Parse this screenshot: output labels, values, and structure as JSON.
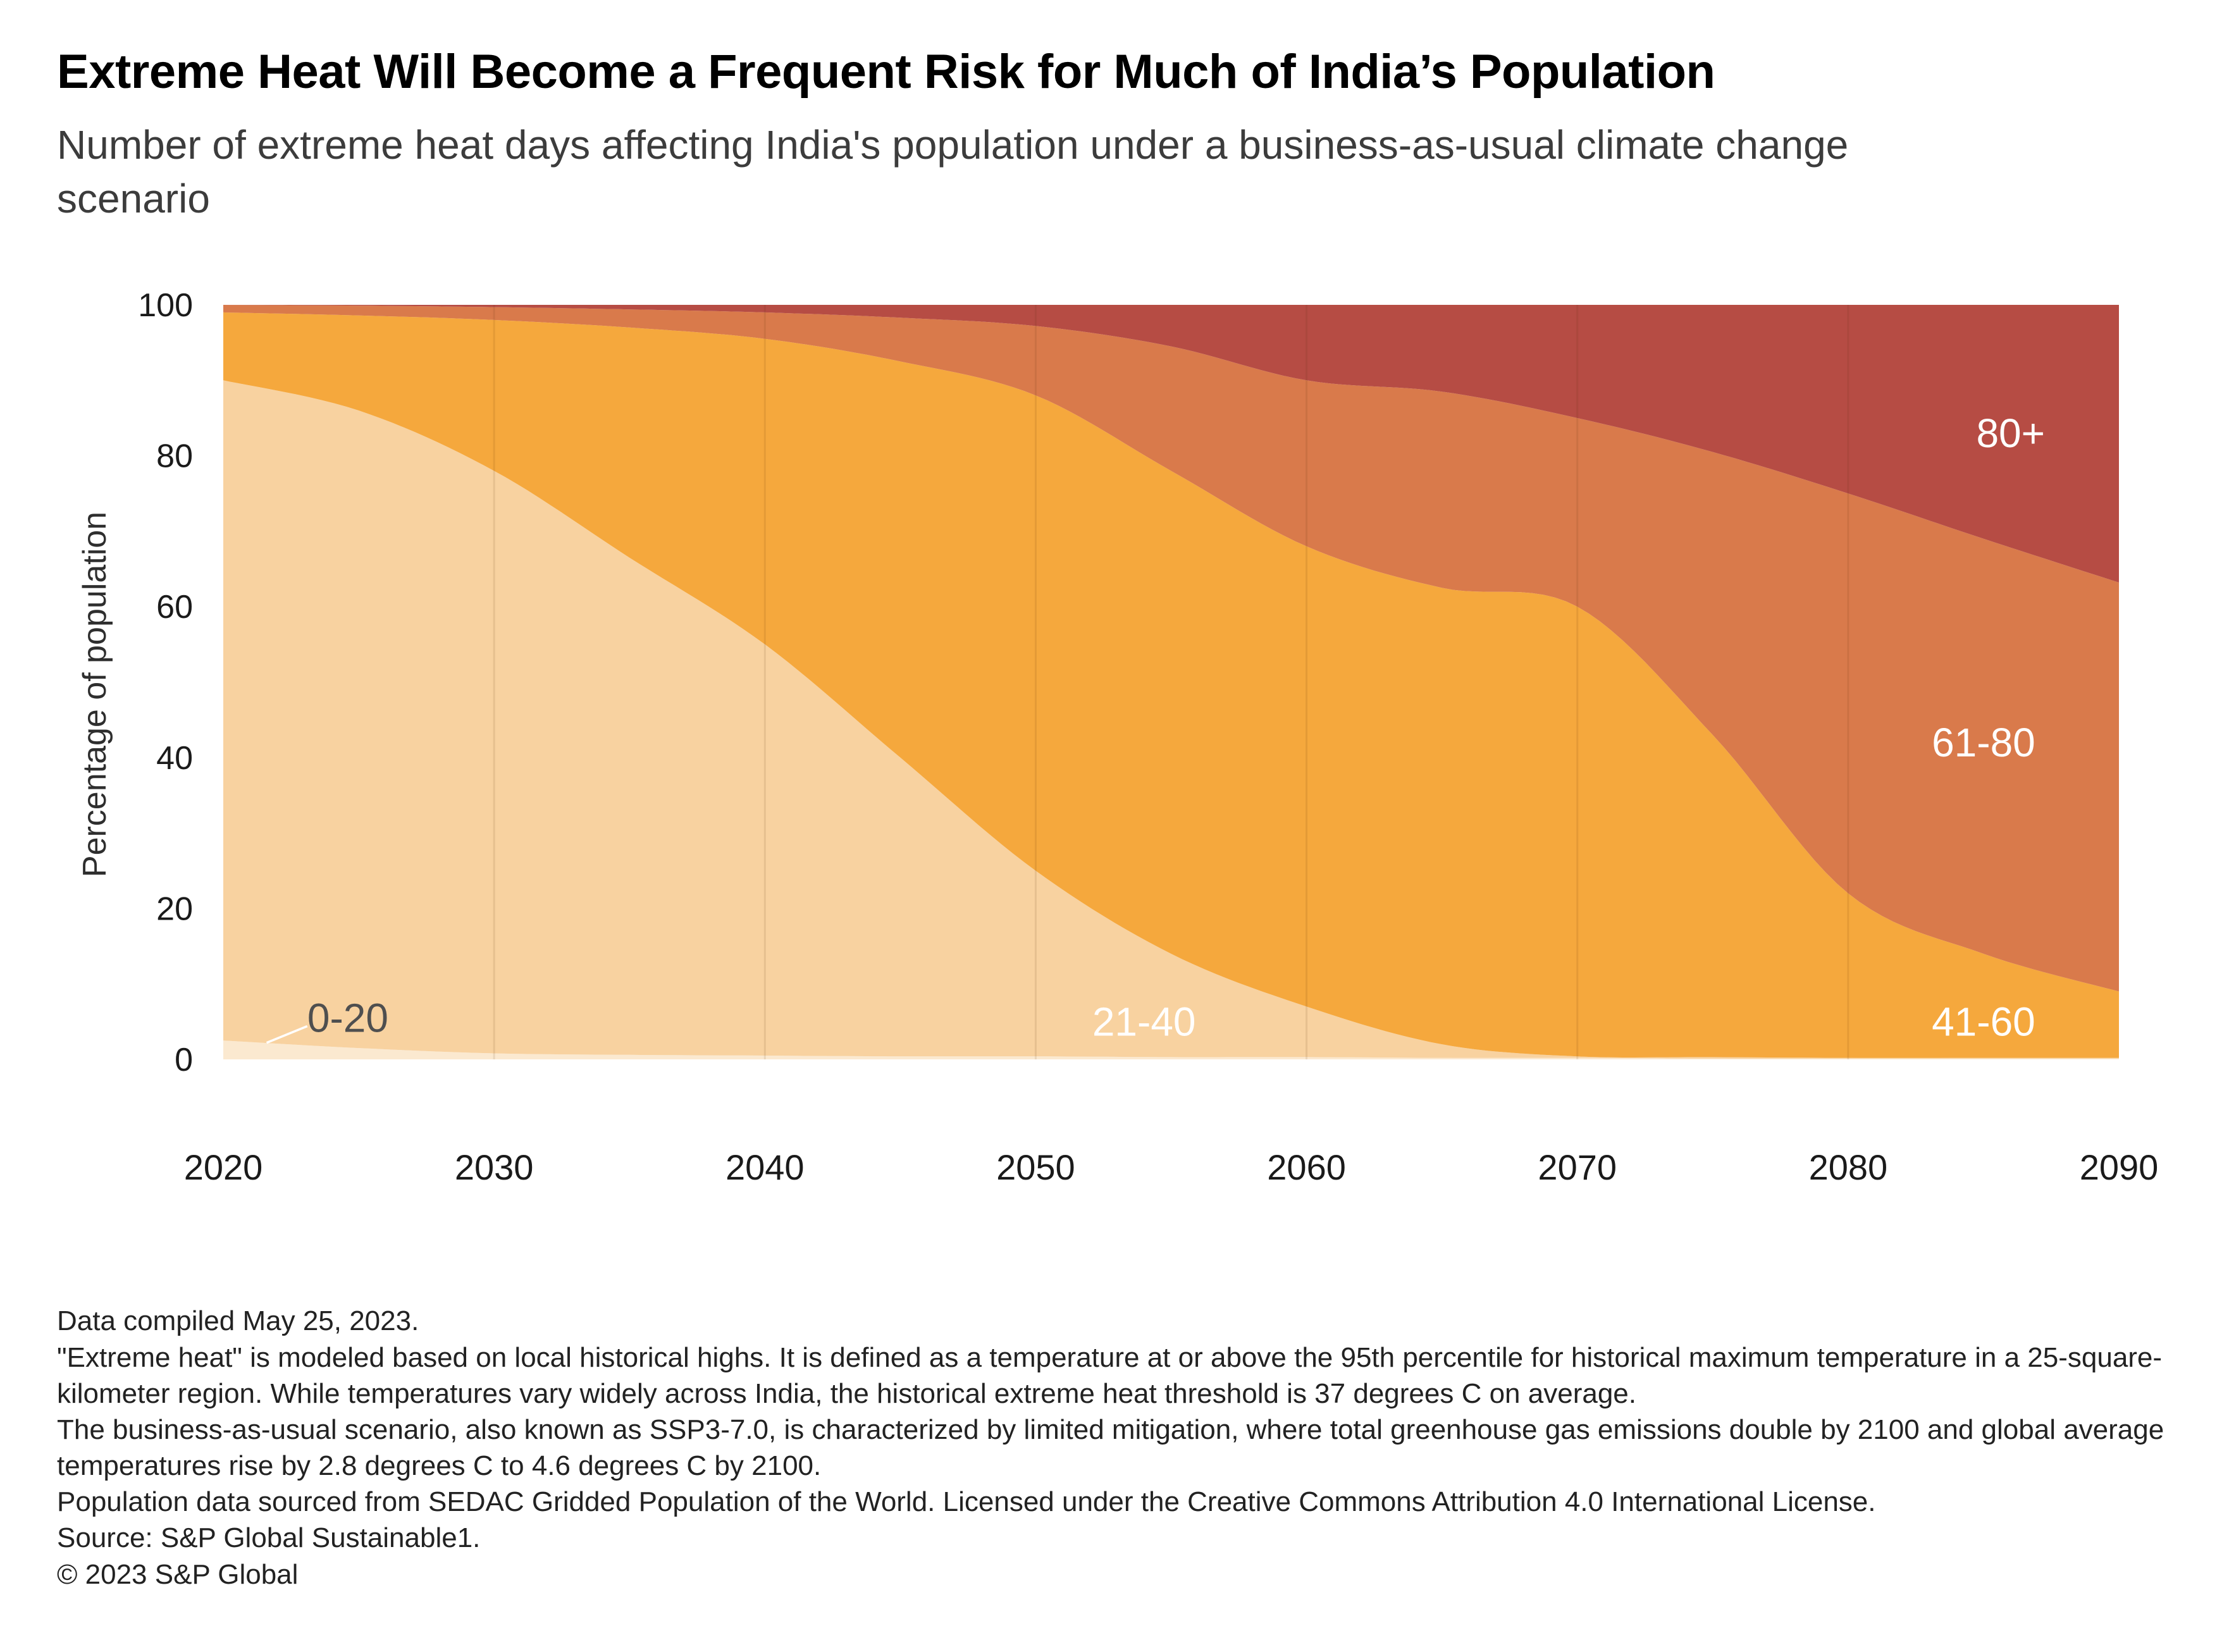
{
  "header": {
    "title": "Extreme Heat Will Become a Frequent Risk for Much of India’s Population",
    "subtitle": "Number of extreme heat days affecting India's population under a business-as-usual climate change scenario"
  },
  "chart_data": {
    "type": "area",
    "stacked": true,
    "units": "percent of population",
    "title": "Number of extreme heat days affecting India's population under a business-as-usual climate change scenario",
    "xlabel": "",
    "ylabel": "Percentage of population",
    "ylim": [
      0,
      100
    ],
    "yticks": [
      0,
      20,
      40,
      60,
      80,
      100
    ],
    "xticks": [
      2020,
      2030,
      2040,
      2050,
      2060,
      2070,
      2080,
      2090
    ],
    "gridline_years": [
      2030,
      2040,
      2050,
      2060,
      2070,
      2080
    ],
    "x": [
      2020,
      2025,
      2030,
      2035,
      2040,
      2045,
      2050,
      2055,
      2060,
      2065,
      2070,
      2075,
      2080,
      2085,
      2090
    ],
    "series": [
      {
        "name": "0-20",
        "color": "#FBE9D0",
        "values": [
          2.5,
          1.5,
          0.8,
          0.6,
          0.5,
          0.4,
          0.4,
          0.3,
          0.3,
          0.2,
          0.2,
          0.1,
          0.1,
          0.1,
          0.1
        ]
      },
      {
        "name": "21-40",
        "color": "#F8D2A0",
        "values": [
          87.5,
          84.5,
          77.2,
          65.9,
          54.5,
          39.6,
          24.6,
          13.7,
          6.7,
          1.8,
          0.2,
          0.2,
          0.1,
          0.1,
          0.1
        ]
      },
      {
        "name": "41-60",
        "color": "#F5A83D",
        "values": [
          9,
          12.6,
          20,
          30.5,
          40.5,
          52.5,
          63,
          64,
          61,
          60.5,
          59.6,
          42.7,
          21.8,
          13.8,
          8.8
        ]
      },
      {
        "name": "61-80",
        "color": "#D97A4B",
        "values": [
          1,
          1.3,
          1.7,
          2.4,
          3.5,
          5.8,
          9.2,
          16.5,
          22,
          26,
          25,
          37.5,
          53,
          55,
          54.2
        ]
      },
      {
        "name": "80+",
        "color": "#B64C44",
        "values": [
          0,
          0.1,
          0.3,
          0.6,
          1,
          1.7,
          2.8,
          5.5,
          10,
          11.5,
          15,
          19.5,
          25,
          31,
          36.8
        ]
      }
    ],
    "annotations": [
      {
        "text": "0-20",
        "year": 2024.6,
        "pct": 5.5,
        "color": "#4f4f4f"
      },
      {
        "text": "21-40",
        "year": 2054,
        "pct": 5,
        "color": "#ffffff"
      },
      {
        "text": "41-60",
        "year": 2085,
        "pct": 5,
        "color": "#ffffff"
      },
      {
        "text": "61-80",
        "year": 2085,
        "pct": 42,
        "color": "#ffffff"
      },
      {
        "text": "80+",
        "year": 2086,
        "pct": 83,
        "color": "#ffffff"
      }
    ],
    "leader_line": {
      "x1": 2021.6,
      "y1": 2.2,
      "x2": 2023.1,
      "y2": 4.4
    },
    "legend_position": "labels-in-plot",
    "grid": "faint-vertical-decade-lines"
  },
  "footnotes": [
    "Data compiled May 25, 2023.",
    "\"Extreme heat\" is modeled based on local historical highs. It is defined as a temperature at or above the 95th percentile for historical maximum temperature in a 25-square-kilometer region. While temperatures vary widely across India, the historical extreme heat threshold is 37 degrees C on average.",
    "The business-as-usual scenario, also known as SSP3-7.0, is characterized by limited mitigation, where total greenhouse gas emissions double by 2100 and global average temperatures rise by 2.8 degrees C to 4.6 degrees C by 2100.",
    "Population data sourced from SEDAC Gridded Population of the World. Licensed under the Creative Commons Attribution 4.0 International License.",
    "Source: S&P Global Sustainable1.",
    "© 2023 S&P Global"
  ]
}
